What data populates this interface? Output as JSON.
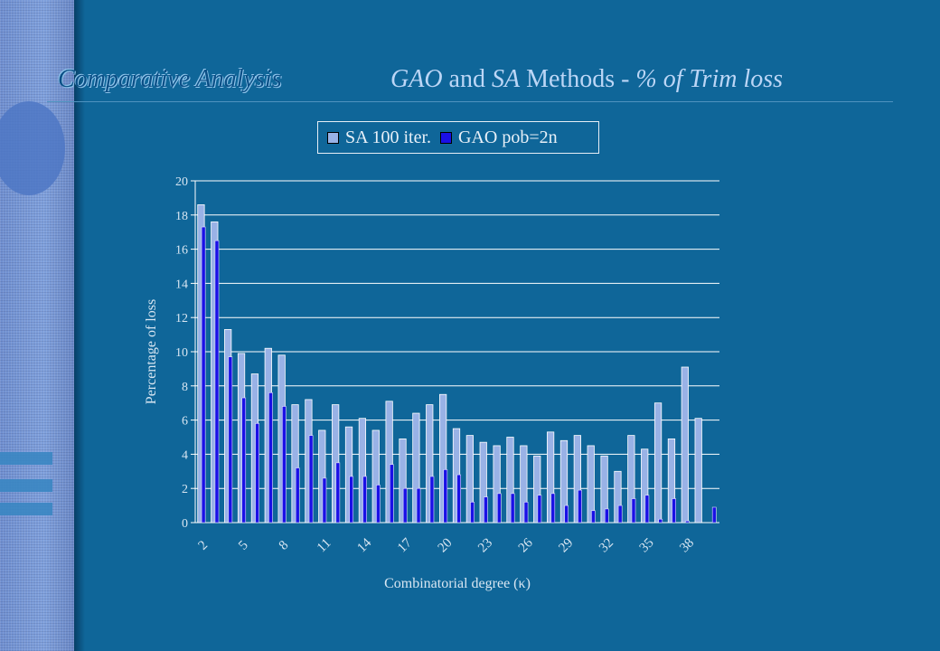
{
  "slide": {
    "title_left": "Comparative Analysis",
    "title_right_parts": {
      "gao": "GAO",
      "and": " and ",
      "sa": "SA",
      "methods": " Methods - ",
      "trim": "% of Trim loss"
    }
  },
  "colors": {
    "background": "#0f6699",
    "sa_bar": "#99b2e6",
    "gao_bar": "#1a10e6",
    "grid": "#ffffff",
    "axis_text": "#d8e6f2"
  },
  "chart_data": {
    "type": "bar",
    "xlabel": "Combinatorial degree (κ)",
    "ylabel": "Percentage of loss",
    "ylim": [
      0,
      20
    ],
    "yticks": [
      0,
      2,
      4,
      6,
      8,
      10,
      12,
      14,
      16,
      18,
      20
    ],
    "x": [
      2,
      3,
      4,
      5,
      6,
      7,
      8,
      9,
      10,
      11,
      12,
      13,
      14,
      15,
      16,
      17,
      18,
      19,
      20,
      21,
      22,
      23,
      24,
      25,
      26,
      27,
      28,
      29,
      30,
      31,
      32,
      33,
      34,
      35,
      36,
      37,
      38,
      39,
      40
    ],
    "x_tick_labels": [
      "2",
      "5",
      "8",
      "11",
      "14",
      "17",
      "20",
      "23",
      "26",
      "29",
      "32",
      "35",
      "38"
    ],
    "legend_position": "top-center",
    "grid": true,
    "series": [
      {
        "name": "SA 100 iter.",
        "color": "#99b2e6",
        "values": [
          18.6,
          17.6,
          11.3,
          9.9,
          8.7,
          10.2,
          9.8,
          6.9,
          7.2,
          5.4,
          6.9,
          5.6,
          6.1,
          5.4,
          7.1,
          4.9,
          6.4,
          6.9,
          7.5,
          5.5,
          5.1,
          4.7,
          4.5,
          5.0,
          4.5,
          3.9,
          5.3,
          4.8,
          5.1,
          4.5,
          3.9,
          3.0,
          5.1,
          4.3,
          7.0,
          4.9,
          9.1,
          6.1,
          0.0
        ]
      },
      {
        "name": "GAO pob=2n",
        "color": "#1a10e6",
        "values": [
          17.3,
          16.5,
          9.7,
          7.3,
          5.8,
          7.6,
          6.8,
          3.2,
          5.1,
          2.6,
          3.5,
          2.7,
          2.7,
          2.2,
          3.4,
          2.0,
          2.0,
          2.7,
          3.1,
          2.8,
          1.2,
          1.5,
          1.7,
          1.7,
          1.2,
          1.6,
          1.7,
          1.0,
          1.9,
          0.7,
          0.8,
          1.0,
          1.4,
          1.6,
          0.2,
          1.4,
          0.1,
          0.0,
          0.9
        ]
      }
    ]
  }
}
